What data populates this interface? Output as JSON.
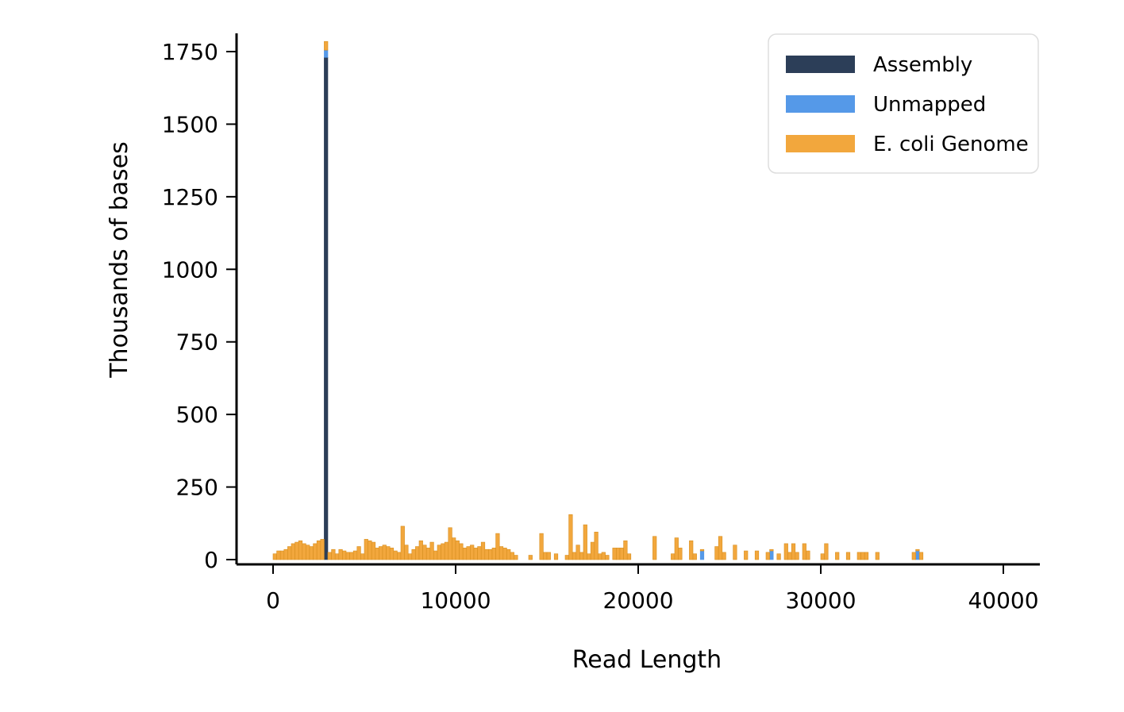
{
  "chart_data": {
    "type": "bar",
    "xlabel": "Read Length",
    "ylabel": "Thousands of bases",
    "xlim": [
      -2000,
      42000
    ],
    "ylim": [
      0,
      1820
    ],
    "xticks": [
      0,
      10000,
      20000,
      30000,
      40000
    ],
    "xtick_labels": [
      "0",
      "10000",
      "20000",
      "30000",
      "40000"
    ],
    "yticks": [
      0,
      250,
      500,
      750,
      1000,
      1250,
      1500,
      1750
    ],
    "ytick_labels": [
      "0",
      "250",
      "500",
      "750",
      "1000",
      "1250",
      "1500",
      "1750"
    ],
    "bin_width": 200,
    "stacked": true,
    "legend_position": "top-right",
    "series": [
      {
        "name": "Assembly",
        "color": "#2c3e58",
        "bins": [
          [
            2800,
            1730
          ]
        ]
      },
      {
        "name": "Unmapped",
        "color": "#5599e8",
        "bins": [
          [
            2800,
            25
          ],
          [
            23400,
            30
          ],
          [
            27200,
            30
          ],
          [
            35200,
            30
          ]
        ]
      },
      {
        "name": "E. coli Genome",
        "color": "#f2a73d",
        "bins": [
          [
            0,
            20
          ],
          [
            200,
            30
          ],
          [
            400,
            30
          ],
          [
            600,
            35
          ],
          [
            800,
            45
          ],
          [
            1000,
            55
          ],
          [
            1200,
            60
          ],
          [
            1400,
            65
          ],
          [
            1600,
            55
          ],
          [
            1800,
            50
          ],
          [
            2000,
            45
          ],
          [
            2200,
            55
          ],
          [
            2400,
            65
          ],
          [
            2600,
            70
          ],
          [
            2800,
            30
          ],
          [
            3000,
            25
          ],
          [
            3200,
            35
          ],
          [
            3400,
            20
          ],
          [
            3600,
            35
          ],
          [
            3800,
            30
          ],
          [
            4000,
            25
          ],
          [
            4200,
            25
          ],
          [
            4400,
            30
          ],
          [
            4600,
            45
          ],
          [
            4800,
            20
          ],
          [
            5000,
            70
          ],
          [
            5200,
            65
          ],
          [
            5400,
            60
          ],
          [
            5600,
            40
          ],
          [
            5800,
            45
          ],
          [
            6000,
            50
          ],
          [
            6200,
            45
          ],
          [
            6400,
            40
          ],
          [
            6600,
            30
          ],
          [
            6800,
            25
          ],
          [
            7000,
            115
          ],
          [
            7200,
            50
          ],
          [
            7400,
            20
          ],
          [
            7600,
            35
          ],
          [
            7800,
            45
          ],
          [
            8000,
            65
          ],
          [
            8200,
            50
          ],
          [
            8400,
            40
          ],
          [
            8600,
            60
          ],
          [
            8800,
            30
          ],
          [
            9000,
            50
          ],
          [
            9200,
            55
          ],
          [
            9400,
            60
          ],
          [
            9600,
            110
          ],
          [
            9800,
            75
          ],
          [
            10000,
            65
          ],
          [
            10200,
            55
          ],
          [
            10400,
            40
          ],
          [
            10600,
            45
          ],
          [
            10800,
            50
          ],
          [
            11000,
            40
          ],
          [
            11200,
            45
          ],
          [
            11400,
            60
          ],
          [
            11600,
            35
          ],
          [
            11800,
            35
          ],
          [
            12000,
            40
          ],
          [
            12200,
            90
          ],
          [
            12400,
            45
          ],
          [
            12600,
            40
          ],
          [
            12800,
            35
          ],
          [
            13000,
            25
          ],
          [
            13200,
            15
          ],
          [
            14000,
            15
          ],
          [
            14600,
            90
          ],
          [
            14800,
            25
          ],
          [
            15000,
            25
          ],
          [
            15400,
            20
          ],
          [
            16000,
            15
          ],
          [
            16200,
            155
          ],
          [
            16400,
            25
          ],
          [
            16600,
            50
          ],
          [
            16800,
            25
          ],
          [
            17000,
            120
          ],
          [
            17200,
            20
          ],
          [
            17400,
            60
          ],
          [
            17600,
            95
          ],
          [
            17800,
            20
          ],
          [
            18000,
            25
          ],
          [
            18200,
            15
          ],
          [
            18600,
            40
          ],
          [
            18800,
            40
          ],
          [
            19000,
            40
          ],
          [
            19200,
            65
          ],
          [
            19400,
            20
          ],
          [
            20800,
            80
          ],
          [
            21800,
            20
          ],
          [
            22000,
            75
          ],
          [
            22200,
            40
          ],
          [
            22800,
            65
          ],
          [
            23000,
            20
          ],
          [
            23400,
            5
          ],
          [
            24200,
            45
          ],
          [
            24400,
            80
          ],
          [
            24600,
            25
          ],
          [
            25200,
            50
          ],
          [
            25800,
            30
          ],
          [
            26400,
            30
          ],
          [
            27000,
            25
          ],
          [
            27200,
            5
          ],
          [
            27600,
            20
          ],
          [
            28000,
            55
          ],
          [
            28200,
            25
          ],
          [
            28400,
            55
          ],
          [
            28600,
            25
          ],
          [
            29000,
            55
          ],
          [
            29200,
            30
          ],
          [
            30000,
            20
          ],
          [
            30200,
            55
          ],
          [
            30800,
            25
          ],
          [
            31400,
            25
          ],
          [
            32000,
            25
          ],
          [
            32200,
            25
          ],
          [
            32400,
            25
          ],
          [
            33000,
            25
          ],
          [
            35000,
            25
          ],
          [
            35200,
            5
          ],
          [
            35400,
            25
          ]
        ]
      }
    ]
  }
}
